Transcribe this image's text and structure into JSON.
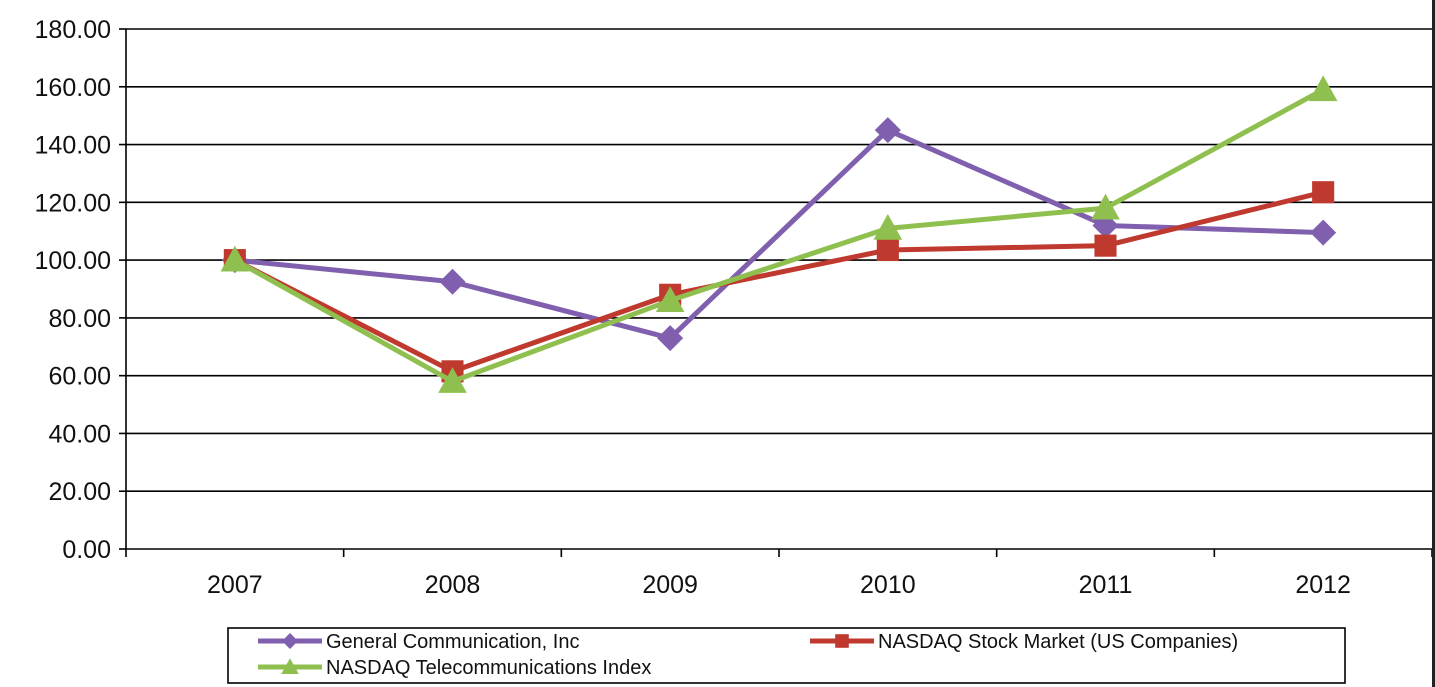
{
  "chart_data": {
    "type": "line",
    "title": "",
    "xlabel": "",
    "ylabel": "",
    "categories": [
      "2007",
      "2008",
      "2009",
      "2010",
      "2011",
      "2012"
    ],
    "ylim": [
      0,
      180
    ],
    "yticks": [
      "0.00",
      "20.00",
      "40.00",
      "60.00",
      "80.00",
      "100.00",
      "120.00",
      "140.00",
      "160.00",
      "180.00"
    ],
    "grid": true,
    "legend_position": "bottom",
    "series": [
      {
        "name": "General Communication, Inc",
        "values": [
          100,
          92.5,
          73,
          145,
          112,
          109.5
        ],
        "color": "#7f5fae",
        "marker": "diamond"
      },
      {
        "name": "NASDAQ Stock Market (US Companies)",
        "values": [
          100,
          61.5,
          88,
          103.5,
          105,
          123.5
        ],
        "color": "#c0392f",
        "marker": "square"
      },
      {
        "name": "NASDAQ Telecommunications Index",
        "values": [
          100,
          58,
          86,
          111,
          118,
          159
        ],
        "color": "#8fc04f",
        "marker": "triangle"
      }
    ]
  }
}
